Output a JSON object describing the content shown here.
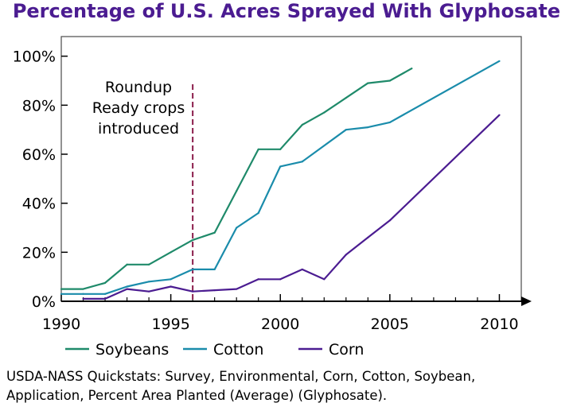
{
  "chart_data": {
    "type": "line",
    "title": "Percentage of U.S. Acres Sprayed With Glyphosate",
    "xlabel": "",
    "ylabel": "",
    "xlim": [
      1990,
      2011
    ],
    "ylim": [
      0,
      108
    ],
    "x_ticks": [
      1990,
      1995,
      2000,
      2005,
      2010
    ],
    "y_ticks": [
      0,
      20,
      40,
      60,
      80,
      100
    ],
    "y_tick_labels": [
      "0%",
      "20%",
      "40%",
      "60%",
      "80%",
      "100%"
    ],
    "grid": false,
    "legend_position": "bottom",
    "series": [
      {
        "name": "Soybeans",
        "color": "#1f8a6a",
        "x": [
          1990,
          1991,
          1992,
          1993,
          1994,
          1995,
          1996,
          1997,
          1998,
          1999,
          2000,
          2001,
          2002,
          2003,
          2004,
          2005,
          2006
        ],
        "values": [
          5,
          5,
          7.5,
          15,
          15,
          20,
          25,
          28,
          45,
          62,
          62,
          72,
          77,
          83,
          89,
          90,
          95
        ]
      },
      {
        "name": "Cotton",
        "color": "#1a8cab",
        "x": [
          1990,
          1991,
          1992,
          1993,
          1994,
          1995,
          1996,
          1997,
          1998,
          1999,
          2000,
          2001,
          2003,
          2004,
          2005,
          2010
        ],
        "values": [
          3,
          3,
          3,
          6,
          8,
          9,
          13,
          13,
          30,
          36,
          55,
          57,
          70,
          71,
          73,
          98
        ]
      },
      {
        "name": "Corn",
        "color": "#4b1c91",
        "x": [
          1991,
          1992,
          1993,
          1994,
          1995,
          1996,
          1997,
          1998,
          1999,
          2000,
          2001,
          2002,
          2003,
          2004,
          2005,
          2010
        ],
        "values": [
          1,
          1,
          5,
          4,
          6,
          4,
          4.5,
          5,
          9,
          9,
          13,
          9,
          19,
          26,
          33,
          76
        ]
      }
    ],
    "annotations": [
      {
        "x": 1996,
        "lines": [
          "Roundup",
          "Ready crops",
          "introduced"
        ],
        "color": "#8b1c4a"
      }
    ]
  },
  "source": {
    "line1": "USDA-NASS Quickstats: Survey, Environmental, Corn, Cotton, Soybean,",
    "line2": "Application, Percent Area Planted (Average) (Glyphosate)."
  }
}
